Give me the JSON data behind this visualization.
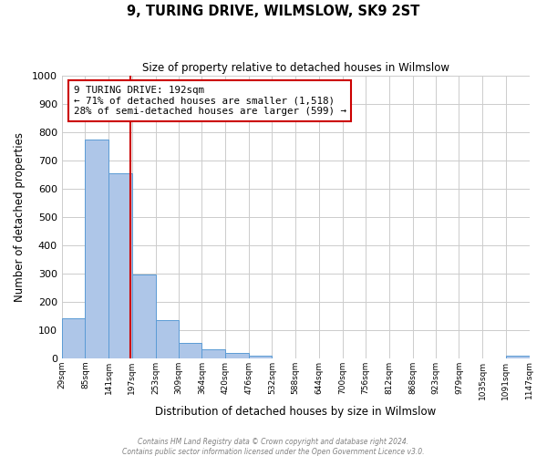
{
  "title": "9, TURING DRIVE, WILMSLOW, SK9 2ST",
  "subtitle": "Size of property relative to detached houses in Wilmslow",
  "xlabel": "Distribution of detached houses by size in Wilmslow",
  "ylabel": "Number of detached properties",
  "bar_edges": [
    29,
    85,
    141,
    197,
    253,
    309,
    364,
    420,
    476,
    532,
    588,
    644,
    700,
    756,
    812,
    868,
    923,
    979,
    1035,
    1091,
    1147
  ],
  "bar_heights": [
    140,
    775,
    655,
    295,
    135,
    55,
    32,
    18,
    8,
    0,
    0,
    0,
    0,
    0,
    0,
    0,
    0,
    0,
    0,
    10
  ],
  "bar_color": "#aec6e8",
  "bar_edge_color": "#5b9bd5",
  "property_line_x": 192,
  "property_line_color": "#cc0000",
  "annotation_box_text": "9 TURING DRIVE: 192sqm\n← 71% of detached houses are smaller (1,518)\n28% of semi-detached houses are larger (599) →",
  "annotation_box_facecolor": "white",
  "annotation_box_edgecolor": "#cc0000",
  "ylim": [
    0,
    1000
  ],
  "yticks": [
    0,
    100,
    200,
    300,
    400,
    500,
    600,
    700,
    800,
    900,
    1000
  ],
  "tick_labels": [
    "29sqm",
    "85sqm",
    "141sqm",
    "197sqm",
    "253sqm",
    "309sqm",
    "364sqm",
    "420sqm",
    "476sqm",
    "532sqm",
    "588sqm",
    "644sqm",
    "700sqm",
    "756sqm",
    "812sqm",
    "868sqm",
    "923sqm",
    "979sqm",
    "1035sqm",
    "1091sqm",
    "1147sqm"
  ],
  "footer1": "Contains HM Land Registry data © Crown copyright and database right 2024.",
  "footer2": "Contains public sector information licensed under the Open Government Licence v3.0.",
  "background_color": "#ffffff",
  "grid_color": "#cccccc",
  "figsize": [
    6.0,
    5.0
  ],
  "dpi": 100
}
